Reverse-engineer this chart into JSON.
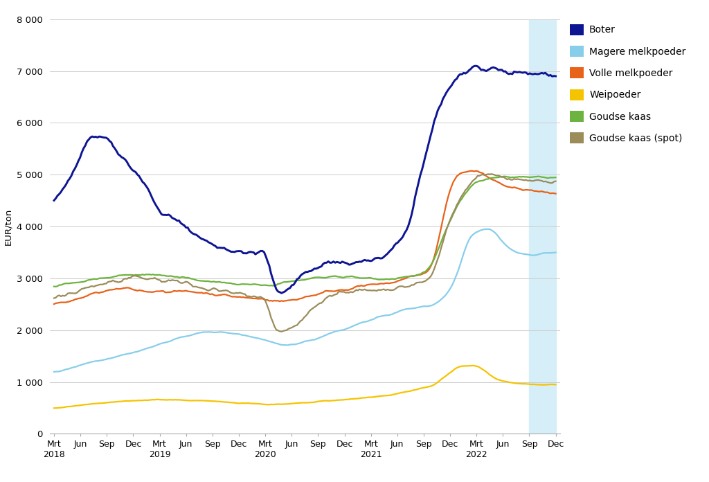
{
  "ylabel": "EUR/ton",
  "ylim": [
    0,
    8000
  ],
  "yticks": [
    0,
    1000,
    2000,
    3000,
    4000,
    5000,
    6000,
    7000,
    8000
  ],
  "colors": {
    "Boter": "#0d1593",
    "Magere melkpoeder": "#87CEEB",
    "Volle melkpoeder": "#e8621a",
    "Weipoeder": "#f5c400",
    "Goudse kaas": "#6db33f",
    "Goudse kaas (spot)": "#9b8c5a"
  },
  "shade_color": "#d6eef8",
  "background_color": "#ffffff",
  "grid_color": "#cccccc",
  "n_points": 290
}
